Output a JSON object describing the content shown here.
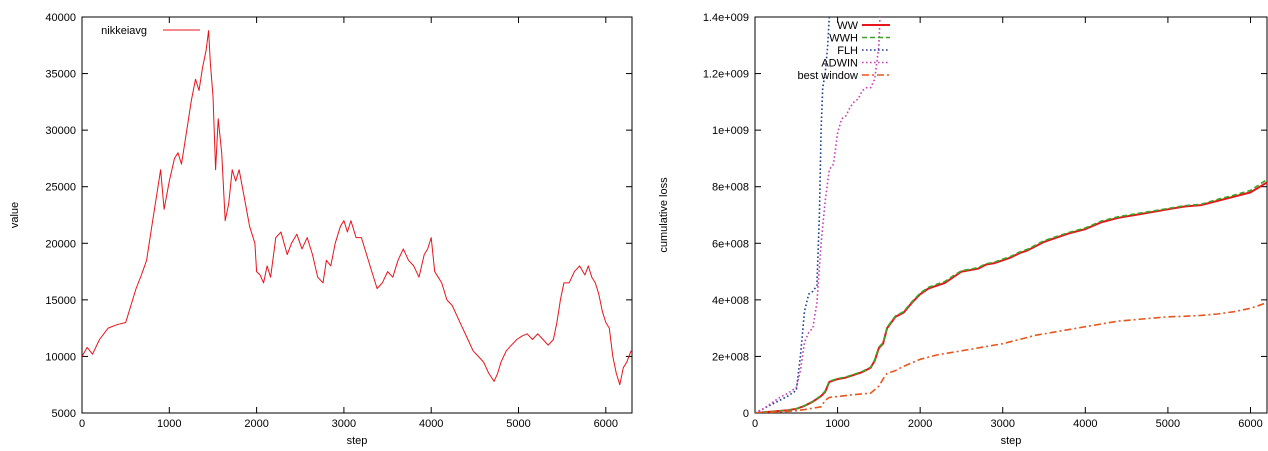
{
  "chart_data": [
    {
      "type": "line",
      "title": "",
      "xlabel": "step",
      "ylabel": "value",
      "xlim": [
        0,
        6300
      ],
      "ylim": [
        5000,
        40000
      ],
      "xticks": [
        0,
        1000,
        2000,
        3000,
        4000,
        5000,
        6000
      ],
      "yticks": [
        5000,
        10000,
        15000,
        20000,
        25000,
        30000,
        35000,
        40000
      ],
      "x_tick_labels": [
        "0",
        "1000",
        "2000",
        "3000",
        "4000",
        "5000",
        "6000"
      ],
      "y_tick_labels": [
        "5000",
        "10000",
        "15000",
        "20000",
        "25000",
        "30000",
        "35000",
        "40000"
      ],
      "legend_position": "top-left",
      "grid": false,
      "series": [
        {
          "name": "nikkeiavg",
          "color": "#e8141c",
          "style": "solid",
          "x": [
            0,
            60,
            120,
            200,
            300,
            400,
            500,
            560,
            620,
            680,
            740,
            800,
            860,
            900,
            940,
            1000,
            1060,
            1100,
            1140,
            1200,
            1250,
            1300,
            1340,
            1380,
            1420,
            1450,
            1470,
            1500,
            1530,
            1560,
            1600,
            1640,
            1680,
            1720,
            1760,
            1800,
            1860,
            1920,
            1980,
            2000,
            2040,
            2080,
            2120,
            2160,
            2220,
            2280,
            2350,
            2400,
            2460,
            2520,
            2580,
            2640,
            2700,
            2760,
            2800,
            2850,
            2900,
            2960,
            3000,
            3040,
            3080,
            3140,
            3200,
            3260,
            3320,
            3380,
            3440,
            3500,
            3560,
            3620,
            3680,
            3740,
            3800,
            3860,
            3920,
            3960,
            4000,
            4040,
            4080,
            4120,
            4180,
            4240,
            4300,
            4360,
            4420,
            4480,
            4540,
            4600,
            4660,
            4720,
            4760,
            4800,
            4860,
            4920,
            4980,
            5040,
            5100,
            5160,
            5220,
            5280,
            5340,
            5400,
            5440,
            5480,
            5520,
            5580,
            5640,
            5700,
            5760,
            5800,
            5840,
            5880,
            5920,
            5960,
            6000,
            6040,
            6080,
            6120,
            6160,
            6200,
            6240,
            6290
          ],
          "y": [
            10000,
            10800,
            10200,
            11500,
            12500,
            12800,
            13000,
            14500,
            16000,
            17200,
            18500,
            21500,
            24500,
            26500,
            23000,
            25500,
            27500,
            28000,
            27000,
            30000,
            32500,
            34500,
            33500,
            35500,
            37000,
            38800,
            36000,
            33000,
            26500,
            31000,
            28000,
            22000,
            23500,
            26500,
            25500,
            26500,
            24000,
            21500,
            20000,
            17500,
            17200,
            16500,
            18000,
            17000,
            20500,
            21000,
            19000,
            20000,
            20800,
            19500,
            20500,
            19000,
            17000,
            16500,
            18500,
            18000,
            20000,
            21500,
            22000,
            21000,
            22000,
            20500,
            20500,
            19000,
            17500,
            16000,
            16500,
            17500,
            17000,
            18500,
            19500,
            18500,
            18000,
            17000,
            19000,
            19500,
            20500,
            17500,
            17000,
            16500,
            15000,
            14500,
            13500,
            12500,
            11500,
            10500,
            10000,
            9500,
            8500,
            7800,
            8500,
            9500,
            10500,
            11000,
            11500,
            11800,
            12000,
            11500,
            12000,
            11500,
            11000,
            11500,
            13000,
            15000,
            16500,
            16500,
            17500,
            18000,
            17200,
            18000,
            17000,
            16500,
            15500,
            14000,
            13000,
            12500,
            10000,
            8500,
            7500,
            9000,
            9500,
            10500
          ]
        }
      ]
    },
    {
      "type": "line",
      "title": "",
      "xlabel": "step",
      "ylabel": "cumulative loss",
      "xlim": [
        0,
        6200
      ],
      "ylim": [
        0,
        1400000000
      ],
      "xticks": [
        0,
        1000,
        2000,
        3000,
        4000,
        5000,
        6000
      ],
      "yticks": [
        0,
        200000000,
        400000000,
        600000000,
        800000000,
        1000000000,
        1200000000,
        1400000000
      ],
      "x_tick_labels": [
        "0",
        "1000",
        "2000",
        "3000",
        "4000",
        "5000",
        "6000"
      ],
      "y_tick_labels": [
        "0",
        "2e+008",
        "4e+008",
        "6e+008",
        "8e+008",
        "1e+009",
        "1.2e+009",
        "1.4e+009"
      ],
      "legend_position": "top-left",
      "grid": false,
      "series": [
        {
          "name": "WW",
          "color": "#e8141c",
          "style": "solid",
          "x": [
            0,
            200,
            400,
            500,
            600,
            700,
            800,
            850,
            900,
            1000,
            1100,
            1200,
            1300,
            1400,
            1450,
            1500,
            1550,
            1600,
            1700,
            1800,
            1900,
            2000,
            2100,
            2200,
            2300,
            2400,
            2500,
            2600,
            2700,
            2800,
            2900,
            3000,
            3100,
            3200,
            3300,
            3400,
            3500,
            3600,
            3800,
            4000,
            4200,
            4400,
            4600,
            4800,
            5000,
            5200,
            5400,
            5600,
            5800,
            6000,
            6200
          ],
          "y": [
            0,
            5000000,
            10000000,
            15000000,
            25000000,
            40000000,
            60000000,
            75000000,
            110000000,
            120000000,
            125000000,
            135000000,
            145000000,
            160000000,
            185000000,
            230000000,
            245000000,
            300000000,
            340000000,
            355000000,
            390000000,
            420000000,
            440000000,
            450000000,
            460000000,
            480000000,
            500000000,
            505000000,
            510000000,
            525000000,
            530000000,
            540000000,
            550000000,
            565000000,
            575000000,
            590000000,
            605000000,
            615000000,
            635000000,
            650000000,
            675000000,
            690000000,
            700000000,
            710000000,
            720000000,
            730000000,
            735000000,
            750000000,
            765000000,
            780000000,
            815000000
          ]
        },
        {
          "name": "WWH",
          "color": "#3aa623",
          "style": "dashed",
          "x": [
            0,
            200,
            400,
            500,
            600,
            700,
            800,
            850,
            900,
            1000,
            1100,
            1200,
            1300,
            1400,
            1450,
            1500,
            1550,
            1600,
            1700,
            1800,
            1900,
            2000,
            2100,
            2200,
            2300,
            2400,
            2500,
            2600,
            2700,
            2800,
            2900,
            3000,
            3100,
            3200,
            3300,
            3400,
            3500,
            3600,
            3800,
            4000,
            4200,
            4400,
            4600,
            4800,
            5000,
            5200,
            5400,
            5600,
            5800,
            6000,
            6200
          ],
          "y": [
            0,
            5000000,
            10000000,
            15000000,
            26000000,
            41000000,
            62000000,
            78000000,
            112000000,
            122000000,
            127000000,
            137000000,
            147000000,
            162000000,
            188000000,
            233000000,
            248000000,
            303000000,
            343000000,
            358000000,
            393000000,
            424000000,
            444000000,
            455000000,
            465000000,
            485000000,
            503000000,
            508000000,
            514000000,
            528000000,
            533000000,
            544000000,
            554000000,
            569000000,
            579000000,
            594000000,
            609000000,
            619000000,
            638000000,
            654000000,
            679000000,
            694000000,
            704000000,
            713000000,
            723000000,
            733000000,
            738000000,
            755000000,
            770000000,
            787000000,
            825000000
          ]
        },
        {
          "name": "FLH",
          "color": "#1f3f99",
          "style": "dotted",
          "x": [
            0,
            100,
            200,
            300,
            400,
            500,
            550,
            600,
            650,
            700,
            750,
            780,
            800,
            820,
            850,
            880,
            900,
            920
          ],
          "y": [
            0,
            15000000,
            30000000,
            45000000,
            60000000,
            80000000,
            200000000,
            360000000,
            420000000,
            430000000,
            450000000,
            700000000,
            1000000000,
            1150000000,
            1200000000,
            1300000000,
            1400000000,
            1450000000
          ]
        },
        {
          "name": "ADWIN",
          "color": "#cc3fb8",
          "style": "dotted",
          "x": [
            0,
            100,
            200,
            300,
            400,
            500,
            550,
            600,
            650,
            700,
            750,
            800,
            850,
            900,
            950,
            1000,
            1050,
            1100,
            1150,
            1200,
            1250,
            1300,
            1350,
            1400,
            1450,
            1480,
            1500,
            1520
          ],
          "y": [
            0,
            15000000,
            35000000,
            55000000,
            70000000,
            90000000,
            150000000,
            250000000,
            285000000,
            300000000,
            390000000,
            600000000,
            750000000,
            860000000,
            880000000,
            990000000,
            1040000000,
            1050000000,
            1080000000,
            1100000000,
            1110000000,
            1140000000,
            1150000000,
            1150000000,
            1180000000,
            1250000000,
            1300000000,
            1450000000
          ]
        },
        {
          "name": "best window",
          "color": "#e8561c",
          "style": "dashdot",
          "x": [
            0,
            200,
            400,
            500,
            600,
            800,
            850,
            900,
            1000,
            1200,
            1400,
            1500,
            1550,
            1600,
            1700,
            1800,
            2000,
            2200,
            2400,
            2600,
            2800,
            3000,
            3200,
            3400,
            3600,
            3800,
            4000,
            4200,
            4400,
            4600,
            4800,
            5000,
            5200,
            5400,
            5600,
            5800,
            6000,
            6200
          ],
          "y": [
            0,
            3000000,
            6000000,
            8000000,
            12000000,
            22000000,
            45000000,
            55000000,
            58000000,
            65000000,
            70000000,
            95000000,
            120000000,
            140000000,
            150000000,
            165000000,
            190000000,
            205000000,
            215000000,
            225000000,
            235000000,
            245000000,
            260000000,
            275000000,
            285000000,
            295000000,
            305000000,
            315000000,
            325000000,
            330000000,
            335000000,
            340000000,
            342000000,
            345000000,
            350000000,
            358000000,
            370000000,
            390000000
          ]
        }
      ]
    }
  ]
}
